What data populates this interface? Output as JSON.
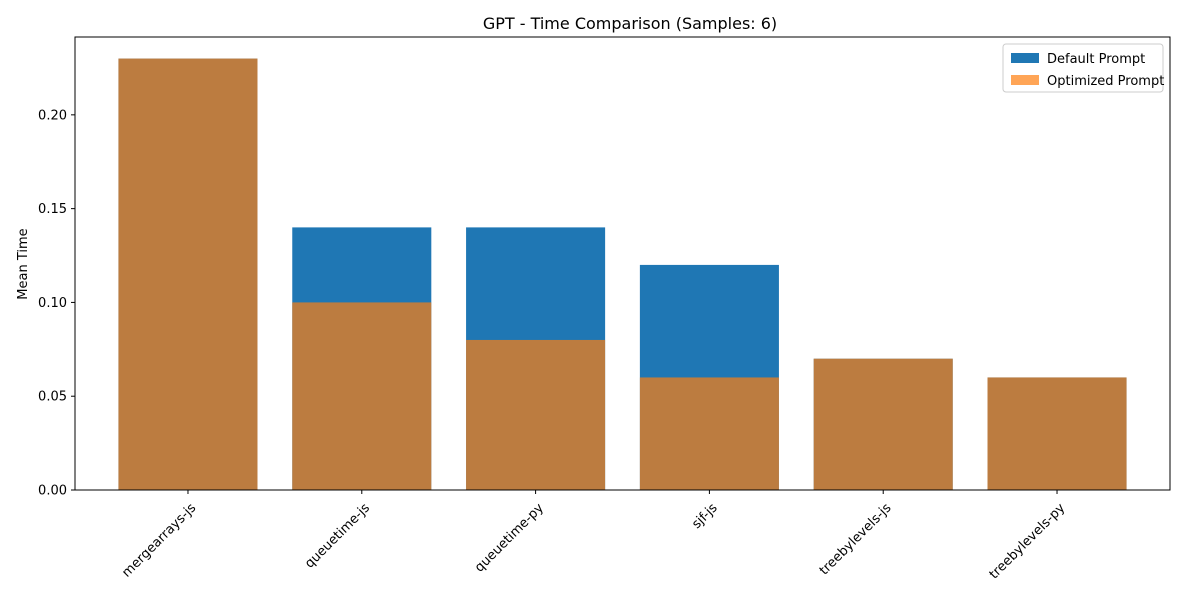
{
  "chart_data": {
    "type": "bar",
    "title": "GPT - Time Comparison (Samples: 6)",
    "xlabel": "",
    "ylabel": "Mean Time",
    "categories": [
      "mergearrays-js",
      "queuetime-js",
      "queuetime-py",
      "sjf-js",
      "treebylevels-js",
      "treebylevels-py"
    ],
    "series": [
      {
        "name": "Default Prompt",
        "color": "#1f77b4",
        "opacity": 1.0,
        "values": [
          0.23,
          0.14,
          0.14,
          0.12,
          0.07,
          0.06
        ]
      },
      {
        "name": "Optimized Prompt",
        "color": "#ff7f0e",
        "opacity": 0.7,
        "values": [
          0.23,
          0.1,
          0.08,
          0.06,
          0.07,
          0.06
        ]
      }
    ],
    "ylim": [
      0,
      0.2415
    ],
    "yticks": [
      0.0,
      0.05,
      0.1,
      0.15,
      0.2
    ],
    "ytick_labels": [
      "0.00",
      "0.05",
      "0.10",
      "0.15",
      "0.20"
    ],
    "bars_overlaid": true,
    "grid": false,
    "legend_position": "top-right"
  }
}
